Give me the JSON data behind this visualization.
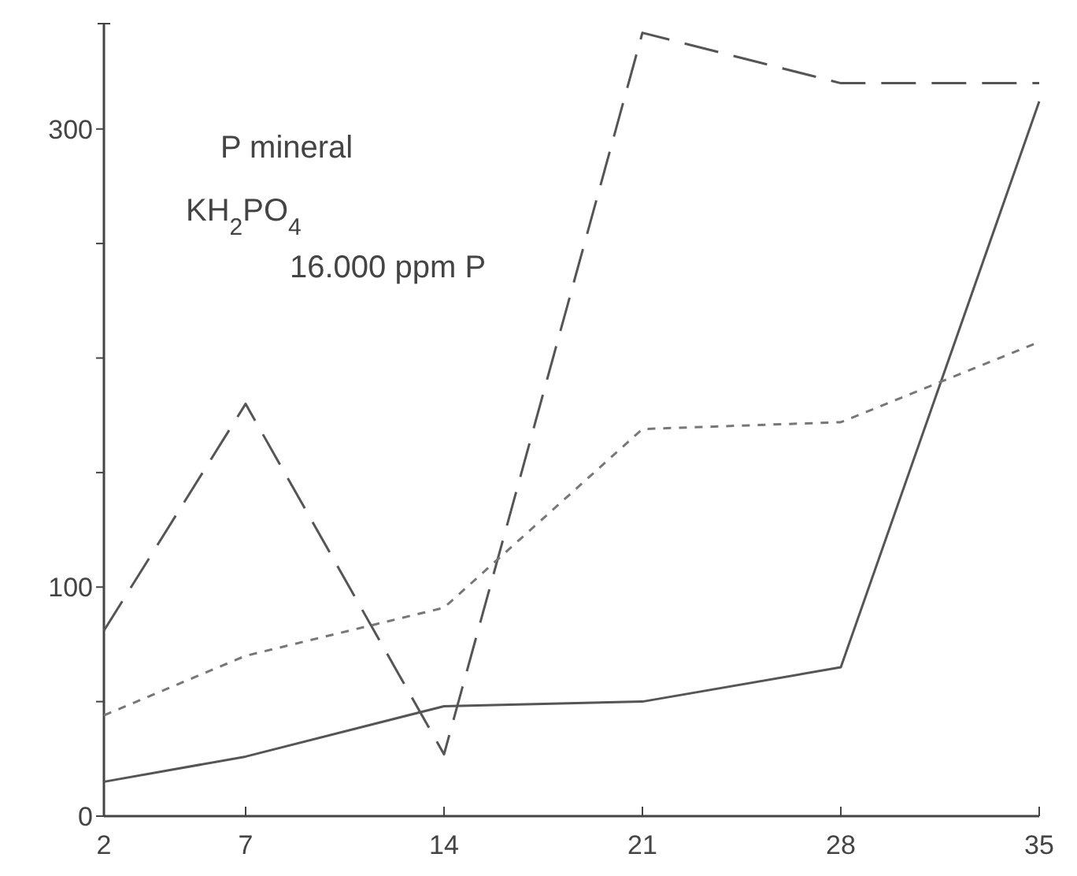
{
  "chart_data": {
    "type": "line",
    "x": [
      2,
      7,
      14,
      21,
      28,
      35
    ],
    "series": [
      {
        "color": "#555555",
        "line_style": "solid",
        "values": [
          15,
          26,
          48,
          50,
          65,
          312
        ]
      },
      {
        "color": "#555555",
        "line_style": "dashed",
        "values": [
          81,
          180,
          27,
          342,
          320,
          320
        ]
      },
      {
        "color": "#777777",
        "line_style": "dotted",
        "values": [
          44,
          70,
          91,
          169,
          172,
          207
        ]
      }
    ],
    "xlim": [
      2,
      35
    ],
    "xticks": [
      2,
      7,
      14,
      21,
      28,
      35
    ],
    "ylim": [
      0,
      346
    ],
    "yticks": [
      0,
      {
        "value": 50,
        "label": null
      },
      100,
      {
        "value": 150,
        "label": null
      },
      {
        "value": 200,
        "label": null
      },
      {
        "value": 250,
        "label": null
      },
      300
    ],
    "grid": false,
    "annotations": [
      "P mineral",
      "KH$_{2}$PO$_{4}$",
      "16.000 ppm P"
    ]
  }
}
